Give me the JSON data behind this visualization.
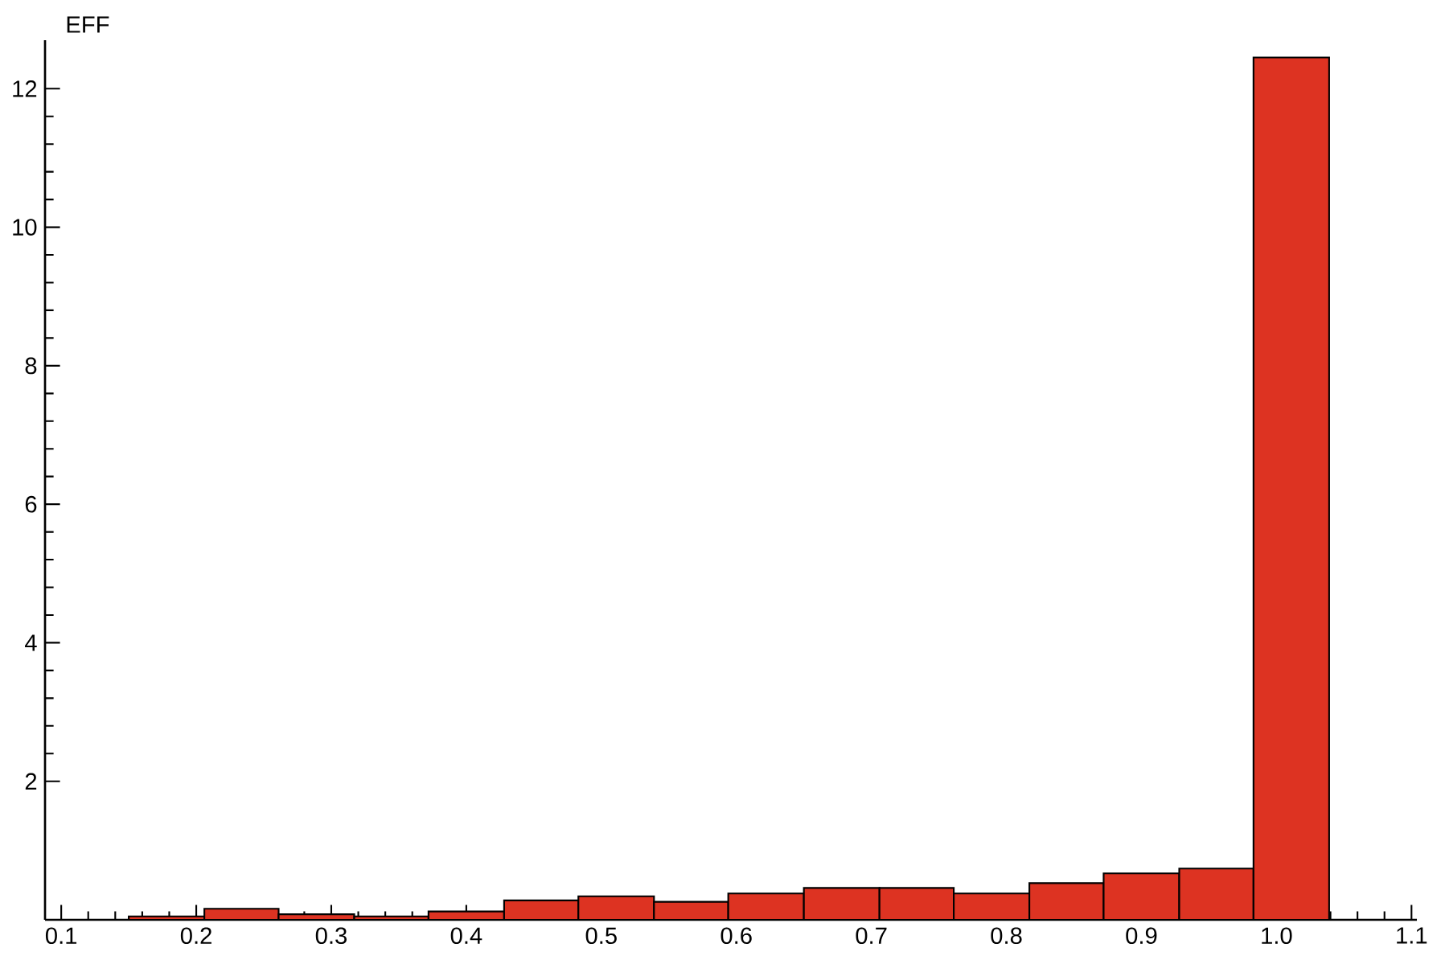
{
  "chart_data": {
    "type": "histogram",
    "ylabel": "EFF",
    "bins": [
      0.15,
      0.206,
      0.261,
      0.317,
      0.372,
      0.428,
      0.483,
      0.539,
      0.594,
      0.65,
      0.706,
      0.761,
      0.817,
      0.872,
      0.928,
      0.983,
      1.039
    ],
    "values": [
      0.05,
      0.16,
      0.08,
      0.05,
      0.12,
      0.28,
      0.34,
      0.26,
      0.38,
      0.46,
      0.46,
      0.38,
      0.53,
      0.67,
      0.74,
      12.45
    ],
    "color": "#dd3322",
    "xlim": [
      0.088,
      1.104
    ],
    "ylim": [
      0,
      12.7
    ],
    "xticks": [
      0.1,
      0.2,
      0.3,
      0.4,
      0.5,
      0.6,
      0.7,
      0.8,
      0.9,
      {
        "value": 1.0,
        "label": "1.0"
      },
      1.1
    ],
    "yticks": [
      2,
      4,
      6,
      8,
      10,
      12
    ]
  }
}
